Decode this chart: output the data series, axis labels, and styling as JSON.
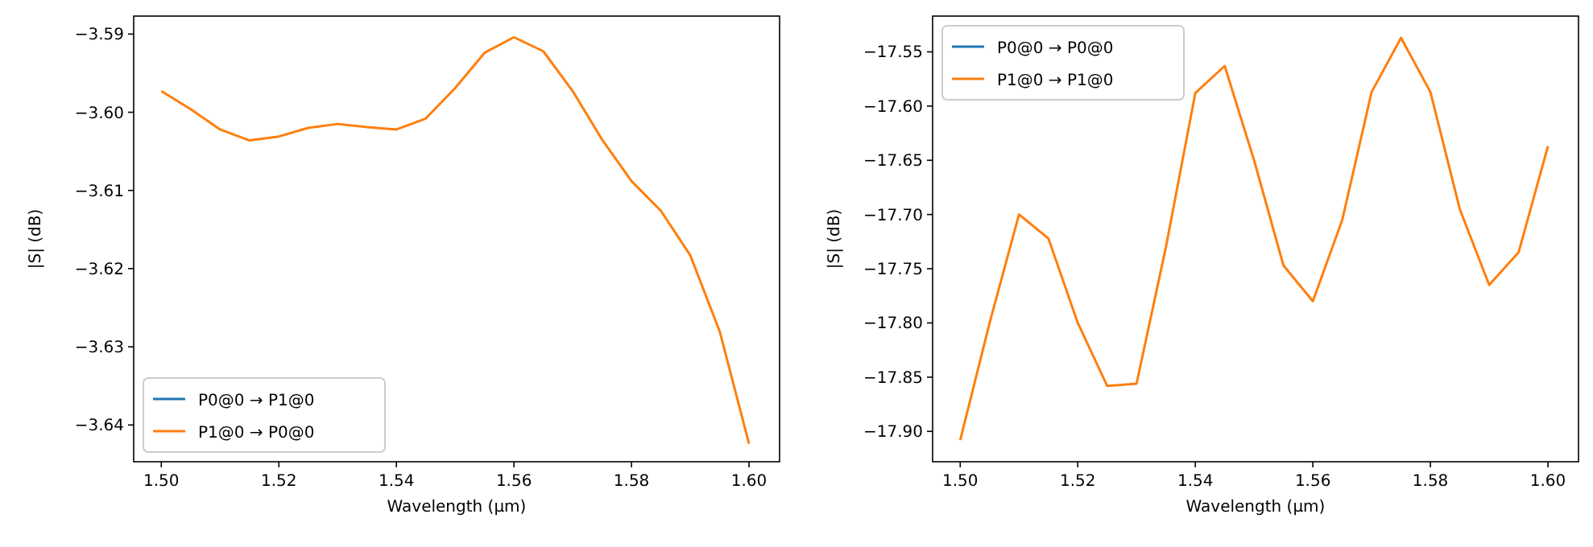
{
  "chart_data": [
    {
      "type": "line",
      "xlabel": "Wavelength (µm)",
      "ylabel": "|S| (dB)",
      "x": [
        1.5,
        1.505,
        1.51,
        1.515,
        1.52,
        1.525,
        1.53,
        1.535,
        1.54,
        1.545,
        1.55,
        1.555,
        1.56,
        1.565,
        1.57,
        1.575,
        1.58,
        1.585,
        1.59,
        1.595,
        1.6
      ],
      "series": [
        {
          "name": "P0@0 → P1@0",
          "color": "#1f77b4",
          "values": [
            null,
            null,
            null,
            null,
            null,
            null,
            null,
            null,
            null,
            null,
            null,
            null,
            null,
            null,
            null,
            null,
            null,
            null,
            null,
            null,
            null
          ]
        },
        {
          "name": "P1@0 → P0@0",
          "color": "#ff7f0e",
          "values": [
            -3.5973,
            -3.5996,
            -3.6022,
            -3.6036,
            -3.6031,
            -3.602,
            -3.6015,
            -3.6019,
            -3.6022,
            -3.6008,
            -3.5969,
            -3.5924,
            -3.5904,
            -3.5922,
            -3.5973,
            -3.6035,
            -3.6088,
            -3.6126,
            -3.6183,
            -3.628,
            -3.6424
          ]
        }
      ],
      "xlim": [
        1.4953,
        1.6052
      ],
      "xticks": [
        {
          "value": 1.5,
          "label": "1.50"
        },
        {
          "value": 1.52,
          "label": "1.52"
        },
        {
          "value": 1.54,
          "label": "1.54"
        },
        {
          "value": 1.56,
          "label": "1.56"
        },
        {
          "value": 1.58,
          "label": "1.58"
        },
        {
          "value": 1.6,
          "label": "1.60"
        }
      ],
      "ylim": [
        -3.6447,
        -3.5877
      ],
      "yticks": [
        {
          "value": -3.64,
          "label": "−3.64"
        },
        {
          "value": -3.63,
          "label": "−3.63"
        },
        {
          "value": -3.62,
          "label": "−3.62"
        },
        {
          "value": -3.61,
          "label": "−3.61"
        },
        {
          "value": -3.6,
          "label": "−3.60"
        },
        {
          "value": -3.59,
          "label": "−3.59"
        }
      ],
      "legend": "bottom left",
      "grid": false
    },
    {
      "type": "line",
      "xlabel": "Wavelength (µm)",
      "ylabel": "|S| (dB)",
      "x": [
        1.5,
        1.505,
        1.51,
        1.515,
        1.52,
        1.525,
        1.53,
        1.535,
        1.54,
        1.545,
        1.55,
        1.555,
        1.56,
        1.565,
        1.57,
        1.575,
        1.58,
        1.585,
        1.59,
        1.595,
        1.6
      ],
      "series": [
        {
          "name": "P0@0 → P0@0",
          "color": "#1f77b4",
          "values": [
            null,
            null,
            null,
            null,
            null,
            null,
            null,
            null,
            null,
            null,
            null,
            null,
            null,
            null,
            null,
            null,
            null,
            null,
            null,
            null,
            null
          ]
        },
        {
          "name": "P1@0 → P1@0",
          "color": "#ff7f0e",
          "values": [
            -17.908,
            -17.8,
            -17.7,
            -17.722,
            -17.8,
            -17.858,
            -17.856,
            -17.73,
            -17.588,
            -17.563,
            -17.65,
            -17.747,
            -17.78,
            -17.705,
            -17.587,
            -17.537,
            -17.587,
            -17.695,
            -17.765,
            -17.735,
            -17.637
          ]
        }
      ],
      "xlim": [
        1.4953,
        1.6052
      ],
      "xticks": [
        {
          "value": 1.5,
          "label": "1.50"
        },
        {
          "value": 1.52,
          "label": "1.52"
        },
        {
          "value": 1.54,
          "label": "1.54"
        },
        {
          "value": 1.56,
          "label": "1.56"
        },
        {
          "value": 1.58,
          "label": "1.58"
        },
        {
          "value": 1.6,
          "label": "1.60"
        }
      ],
      "ylim": [
        -17.928,
        -17.517
      ],
      "yticks": [
        {
          "value": -17.9,
          "label": "−17.90"
        },
        {
          "value": -17.85,
          "label": "−17.85"
        },
        {
          "value": -17.8,
          "label": "−17.80"
        },
        {
          "value": -17.75,
          "label": "−17.75"
        },
        {
          "value": -17.7,
          "label": "−17.70"
        },
        {
          "value": -17.65,
          "label": "−17.65"
        },
        {
          "value": -17.6,
          "label": "−17.60"
        },
        {
          "value": -17.55,
          "label": "−17.55"
        }
      ],
      "legend": "top left",
      "grid": false
    }
  ]
}
